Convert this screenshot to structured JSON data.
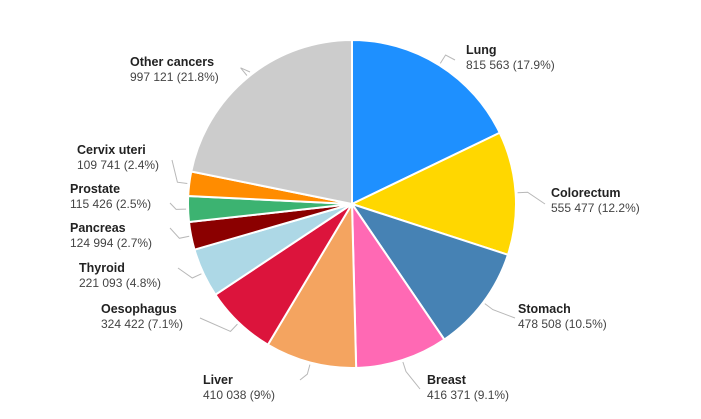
{
  "chart_data": {
    "type": "pie",
    "title": "",
    "slices": [
      {
        "name": "Lung",
        "value": 815563,
        "label": "815 563 (17.9%)",
        "color": "#1e90ff"
      },
      {
        "name": "Colorectum",
        "value": 555477,
        "label": "555 477 (12.2%)",
        "color": "#ffd700"
      },
      {
        "name": "Stomach",
        "value": 478508,
        "label": "478 508 (10.5%)",
        "color": "#4682b4"
      },
      {
        "name": "Breast",
        "value": 416371,
        "label": "416 371 (9.1%)",
        "color": "#ff69b4"
      },
      {
        "name": "Liver",
        "value": 410038,
        "label": "410 038 (9%)",
        "color": "#f4a460"
      },
      {
        "name": "Oesophagus",
        "value": 324422,
        "label": "324 422 (7.1%)",
        "color": "#dc143c"
      },
      {
        "name": "Thyroid",
        "value": 221093,
        "label": "221 093 (4.8%)",
        "color": "#add8e6"
      },
      {
        "name": "Pancreas",
        "value": 124994,
        "label": "124 994 (2.7%)",
        "color": "#8b0000"
      },
      {
        "name": "Prostate",
        "value": 115426,
        "label": "115 426 (2.5%)",
        "color": "#3cb371"
      },
      {
        "name": "Cervix uteri",
        "value": 109741,
        "label": "109 741 (2.4%)",
        "color": "#ff8c00"
      },
      {
        "name": "Other cancers",
        "value": 997121,
        "label": "997 121 (21.8%)",
        "color": "#cccccc"
      }
    ]
  }
}
